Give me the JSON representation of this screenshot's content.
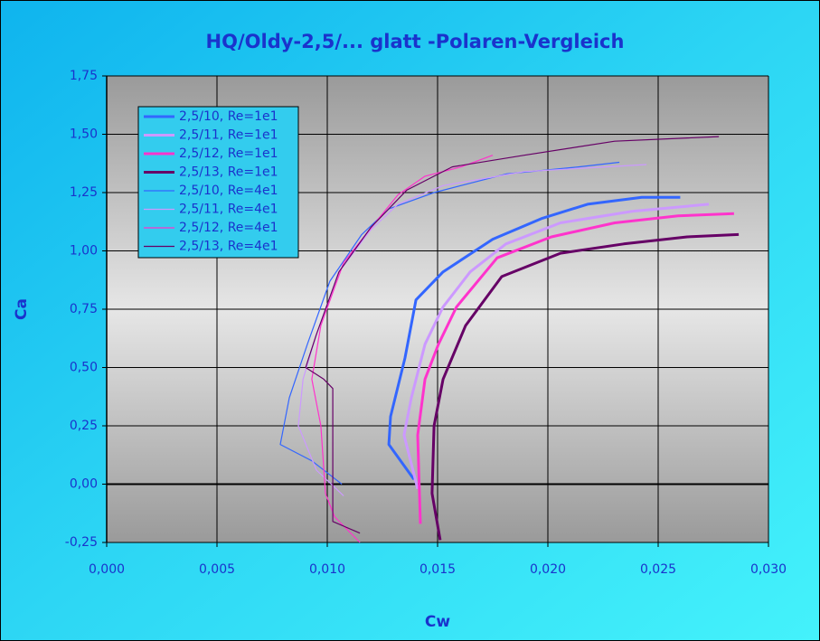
{
  "chart_data": {
    "type": "line",
    "title": "HQ/Oldy-2,5/... glatt -Polaren-Vergleich",
    "x_label": "Cw",
    "y_label": "Ca",
    "xlim": [
      0,
      0.03
    ],
    "ylim": [
      -0.25,
      1.75
    ],
    "xticks": [
      {
        "value": 0,
        "label": "0,000"
      },
      {
        "value": 0.005,
        "label": "0,005"
      },
      {
        "value": 0.01,
        "label": "0,010"
      },
      {
        "value": 0.015,
        "label": "0,015"
      },
      {
        "value": 0.02,
        "label": "0,020"
      },
      {
        "value": 0.025,
        "label": "0,025"
      },
      {
        "value": 0.03,
        "label": "0,030"
      }
    ],
    "yticks": [
      {
        "value": -0.25,
        "label": "-0,25"
      },
      {
        "value": 0,
        "label": "0,00"
      },
      {
        "value": 0.25,
        "label": "0,25"
      },
      {
        "value": 0.5,
        "label": "0,50"
      },
      {
        "value": 0.75,
        "label": "0,75"
      },
      {
        "value": 1,
        "label": "1,00"
      },
      {
        "value": 1.25,
        "label": "1,25"
      },
      {
        "value": 1.5,
        "label": "1,50"
      },
      {
        "value": 1.75,
        "label": "1,75"
      }
    ],
    "grid": true,
    "legend": "top-left",
    "series": [
      {
        "name": "2,5/10, Re=1e1",
        "color": "#3366ff",
        "line_width": 3,
        "x": [
          0.01393,
          0.01279,
          0.01287,
          0.01352,
          0.01402,
          0.01525,
          0.0175,
          0.01975,
          0.0218,
          0.02426,
          0.026
        ],
        "values": [
          0.02,
          0.17,
          0.29,
          0.54,
          0.79,
          0.91,
          1.05,
          1.14,
          1.2,
          1.23,
          1.23
        ]
      },
      {
        "name": "2,5/11, Re=1e1",
        "color": "#cc99ff",
        "line_width": 3,
        "x": [
          0.0141,
          0.01348,
          0.01381,
          0.01443,
          0.01525,
          0.01648,
          0.0181,
          0.02057,
          0.02385,
          0.0273
        ],
        "values": [
          -0.02,
          0.21,
          0.37,
          0.6,
          0.76,
          0.91,
          1.03,
          1.12,
          1.17,
          1.2
        ]
      },
      {
        "name": "2,5/12, Re=1e1",
        "color": "#ff33cc",
        "line_width": 3,
        "x": [
          0.01422,
          0.0141,
          0.01443,
          0.01504,
          0.01586,
          0.0177,
          0.02016,
          0.02303,
          0.0259,
          0.02844
        ],
        "values": [
          -0.17,
          0.21,
          0.45,
          0.6,
          0.76,
          0.97,
          1.06,
          1.12,
          1.15,
          1.16
        ]
      },
      {
        "name": "2,5/13, Re=1e1",
        "color": "#660066",
        "line_width": 3,
        "x": [
          0.01512,
          0.01475,
          0.01484,
          0.01525,
          0.01627,
          0.01791,
          0.02057,
          0.02344,
          0.02631,
          0.02865
        ],
        "values": [
          -0.24,
          -0.04,
          0.25,
          0.45,
          0.68,
          0.89,
          0.99,
          1.03,
          1.06,
          1.07
        ]
      },
      {
        "name": "2,5/10, Re=4e1",
        "color": "#3366ff",
        "line_width": 1.2,
        "x": [
          0.01066,
          0.0093,
          0.00787,
          0.00828,
          0.0091,
          0.01012,
          0.01156,
          0.01279,
          0.01484,
          0.01811,
          0.02139,
          0.02324
        ],
        "values": [
          0,
          0.1,
          0.17,
          0.37,
          0.6,
          0.87,
          1.07,
          1.18,
          1.25,
          1.33,
          1.36,
          1.38
        ]
      },
      {
        "name": "2,5/11, Re=4e1",
        "color": "#cc99ff",
        "line_width": 1.2,
        "x": [
          0.01074,
          0.00951,
          0.00869,
          0.0089,
          0.0095,
          0.01053,
          0.01197,
          0.0132,
          0.01525,
          0.01893,
          0.02447
        ],
        "values": [
          -0.05,
          0.06,
          0.25,
          0.45,
          0.64,
          0.91,
          1.09,
          1.2,
          1.28,
          1.34,
          1.37
        ]
      },
      {
        "name": "2,5/12, Re=4e1",
        "color": "#ff33cc",
        "line_width": 1.2,
        "x": [
          0.01148,
          0.01033,
          0.00992,
          0.00971,
          0.0093,
          0.00971,
          0.01074,
          0.01217,
          0.0132,
          0.01443,
          0.01607,
          0.0175
        ],
        "values": [
          -0.25,
          -0.14,
          -0.04,
          0.25,
          0.45,
          0.68,
          0.95,
          1.12,
          1.24,
          1.32,
          1.36,
          1.41
        ]
      },
      {
        "name": "2,5/13, Re=4e1",
        "color": "#660066",
        "line_width": 1.2,
        "x": [
          0.01148,
          0.01025,
          0.01025,
          0.00984,
          0.00902,
          0.0095,
          0.01053,
          0.01197,
          0.0136,
          0.01566,
          0.01893,
          0.02303,
          0.02775
        ],
        "values": [
          -0.21,
          -0.16,
          0.41,
          0.45,
          0.5,
          0.64,
          0.91,
          1.1,
          1.26,
          1.36,
          1.41,
          1.47,
          1.49
        ]
      }
    ]
  }
}
